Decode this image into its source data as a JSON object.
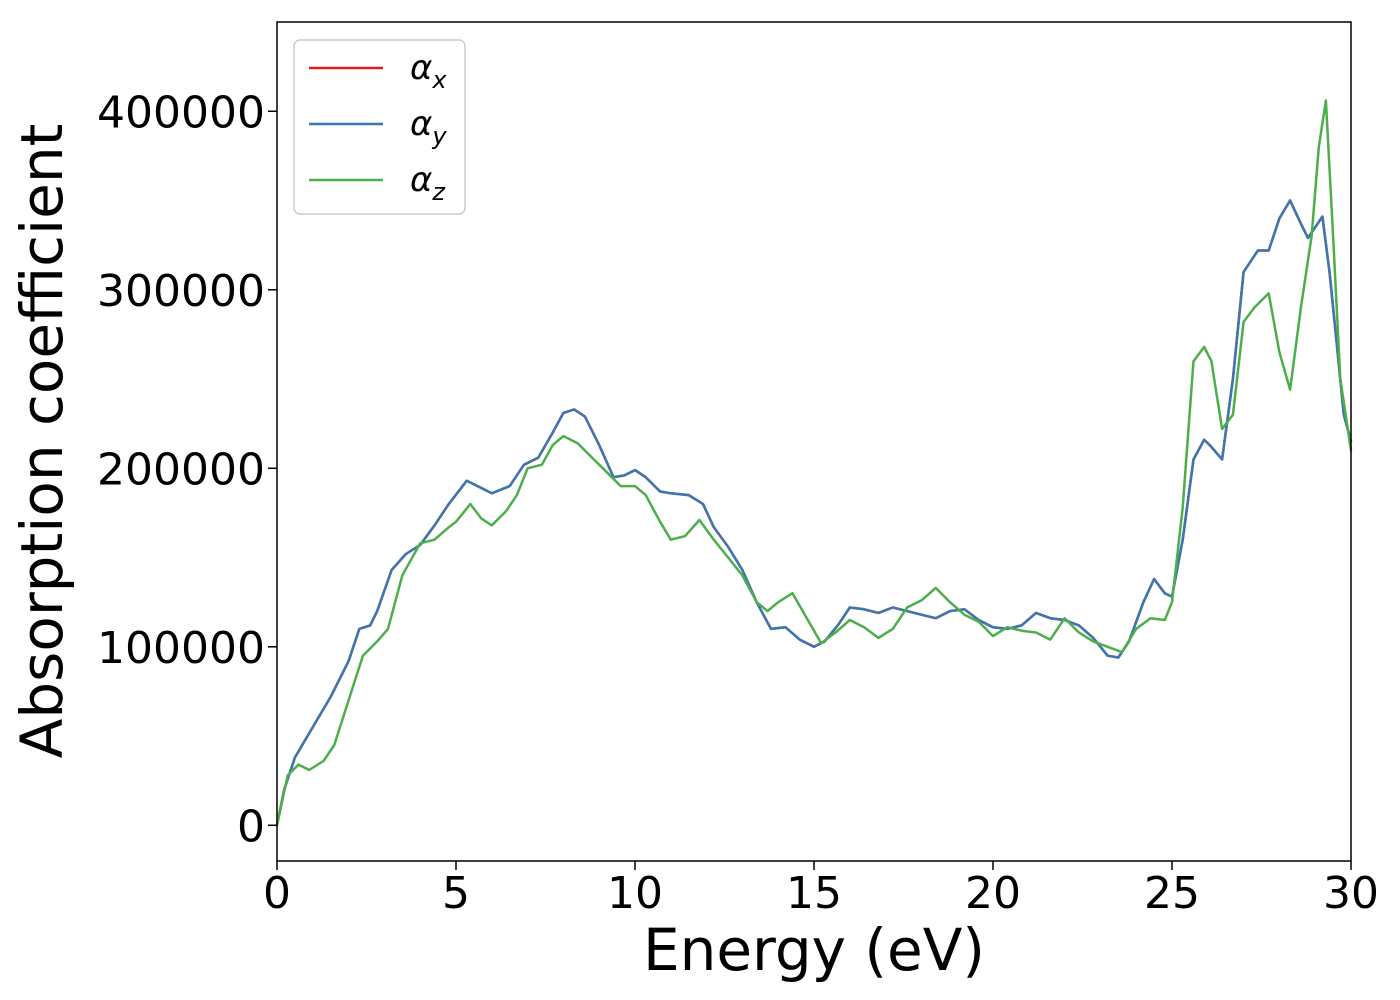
{
  "chart_data": {
    "type": "line",
    "title": "",
    "xlabel": "Energy (eV)",
    "ylabel": "Absorption coefficient",
    "xlim": [
      0,
      30
    ],
    "ylim": [
      -20000,
      450000
    ],
    "xticks": [
      0,
      5,
      10,
      15,
      20,
      25,
      30
    ],
    "yticks": [
      0,
      100000,
      200000,
      300000,
      400000
    ],
    "grid": false,
    "legend_position": "top-left",
    "series": [
      {
        "name": "α_x",
        "label_base": "α",
        "label_sub": "x",
        "color": "#e41a1c",
        "x": [
          0,
          0.2,
          0.5,
          1.0,
          1.5,
          2.0,
          2.3,
          2.6,
          2.8,
          3.2,
          3.6,
          4.0,
          4.4,
          4.8,
          5.3,
          5.7,
          6.0,
          6.5,
          6.9,
          7.3,
          7.7,
          8.0,
          8.3,
          8.6,
          9.0,
          9.4,
          9.7,
          10.0,
          10.3,
          10.7,
          11.0,
          11.5,
          11.9,
          12.2,
          12.6,
          13.0,
          13.4,
          13.8,
          14.2,
          14.6,
          15.0,
          15.3,
          15.7,
          16.0,
          16.4,
          16.8,
          17.2,
          17.6,
          18.0,
          18.4,
          18.8,
          19.2,
          19.6,
          20.0,
          20.4,
          20.8,
          21.2,
          21.6,
          22.0,
          22.4,
          22.8,
          23.2,
          23.5,
          23.8,
          24.2,
          24.5,
          24.8,
          25.0,
          25.3,
          25.6,
          25.9,
          26.1,
          26.4,
          26.7,
          27.0,
          27.4,
          27.7,
          28.0,
          28.3,
          28.6,
          28.8,
          29.0,
          29.2,
          29.4,
          29.6,
          29.8,
          30.0
        ],
        "y": [
          0,
          20000,
          38000,
          55000,
          72000,
          92000,
          110000,
          112000,
          120000,
          143000,
          152000,
          157000,
          168000,
          180000,
          193000,
          189000,
          186000,
          190000,
          202000,
          206000,
          220000,
          231000,
          233000,
          229000,
          213000,
          195000,
          196000,
          199000,
          195000,
          187000,
          186000,
          185000,
          180000,
          167000,
          156000,
          143000,
          125000,
          110000,
          111000,
          104000,
          100000,
          103000,
          113000,
          122000,
          121000,
          119000,
          122000,
          120000,
          118000,
          116000,
          120000,
          121000,
          115000,
          111000,
          110000,
          112000,
          119000,
          116000,
          115000,
          112000,
          105000,
          95000,
          94000,
          103000,
          125000,
          138000,
          130000,
          128000,
          160000,
          205000,
          216000,
          212000,
          205000,
          250000,
          310000,
          322000,
          322000,
          340000,
          350000,
          337000,
          329000,
          335000,
          341000,
          310000,
          270000,
          230000,
          215000
        ]
      },
      {
        "name": "α_y",
        "label_base": "α",
        "label_sub": "y",
        "color": "#3a78b2",
        "x": [
          0,
          0.2,
          0.5,
          1.0,
          1.5,
          2.0,
          2.3,
          2.6,
          2.8,
          3.2,
          3.6,
          4.0,
          4.4,
          4.8,
          5.3,
          5.7,
          6.0,
          6.5,
          6.9,
          7.3,
          7.7,
          8.0,
          8.3,
          8.6,
          9.0,
          9.4,
          9.7,
          10.0,
          10.3,
          10.7,
          11.0,
          11.5,
          11.9,
          12.2,
          12.6,
          13.0,
          13.4,
          13.8,
          14.2,
          14.6,
          15.0,
          15.3,
          15.7,
          16.0,
          16.4,
          16.8,
          17.2,
          17.6,
          18.0,
          18.4,
          18.8,
          19.2,
          19.6,
          20.0,
          20.4,
          20.8,
          21.2,
          21.6,
          22.0,
          22.4,
          22.8,
          23.2,
          23.5,
          23.8,
          24.2,
          24.5,
          24.8,
          25.0,
          25.3,
          25.6,
          25.9,
          26.1,
          26.4,
          26.7,
          27.0,
          27.4,
          27.7,
          28.0,
          28.3,
          28.6,
          28.8,
          29.0,
          29.2,
          29.4,
          29.6,
          29.8,
          30.0
        ],
        "y": [
          0,
          20000,
          38000,
          55000,
          72000,
          92000,
          110000,
          112000,
          120000,
          143000,
          152000,
          157000,
          168000,
          180000,
          193000,
          189000,
          186000,
          190000,
          202000,
          206000,
          220000,
          231000,
          233000,
          229000,
          213000,
          195000,
          196000,
          199000,
          195000,
          187000,
          186000,
          185000,
          180000,
          167000,
          156000,
          143000,
          125000,
          110000,
          111000,
          104000,
          100000,
          103000,
          113000,
          122000,
          121000,
          119000,
          122000,
          120000,
          118000,
          116000,
          120000,
          121000,
          115000,
          111000,
          110000,
          112000,
          119000,
          116000,
          115000,
          112000,
          105000,
          95000,
          94000,
          103000,
          125000,
          138000,
          130000,
          128000,
          160000,
          205000,
          216000,
          212000,
          205000,
          250000,
          310000,
          322000,
          322000,
          340000,
          350000,
          337000,
          329000,
          335000,
          341000,
          310000,
          270000,
          230000,
          215000
        ]
      },
      {
        "name": "α_z",
        "label_base": "α",
        "label_sub": "z",
        "color": "#4daf4a",
        "x": [
          0,
          0.3,
          0.6,
          0.9,
          1.3,
          1.6,
          2.0,
          2.4,
          2.8,
          3.1,
          3.5,
          4.0,
          4.4,
          4.8,
          5.0,
          5.4,
          5.7,
          6.0,
          6.4,
          6.7,
          7.0,
          7.4,
          7.7,
          8.0,
          8.4,
          8.8,
          9.2,
          9.6,
          10.0,
          10.3,
          10.7,
          11.0,
          11.4,
          11.8,
          12.2,
          12.6,
          13.0,
          13.4,
          13.7,
          14.0,
          14.4,
          14.8,
          15.2,
          15.6,
          16.0,
          16.4,
          16.8,
          17.2,
          17.6,
          18.0,
          18.4,
          18.8,
          19.2,
          19.6,
          20.0,
          20.4,
          20.8,
          21.2,
          21.6,
          22.0,
          22.4,
          22.8,
          23.2,
          23.6,
          24.0,
          24.4,
          24.8,
          25.0,
          25.3,
          25.6,
          25.9,
          26.1,
          26.4,
          26.7,
          27.0,
          27.3,
          27.7,
          28.0,
          28.3,
          28.6,
          28.9,
          29.1,
          29.3,
          29.5,
          29.7,
          30.0
        ],
        "y": [
          0,
          28000,
          34000,
          31000,
          36000,
          45000,
          70000,
          95000,
          103000,
          110000,
          140000,
          158000,
          160000,
          167000,
          170000,
          180000,
          172000,
          168000,
          176000,
          185000,
          200000,
          202000,
          213000,
          218000,
          214000,
          206000,
          198000,
          190000,
          190000,
          185000,
          170000,
          160000,
          162000,
          171000,
          160000,
          150000,
          140000,
          125000,
          120000,
          125000,
          130000,
          116000,
          102000,
          108000,
          115000,
          111000,
          105000,
          110000,
          122000,
          126000,
          133000,
          125000,
          118000,
          114000,
          106000,
          111000,
          109000,
          108000,
          104000,
          116000,
          108000,
          103000,
          100000,
          97000,
          110000,
          116000,
          115000,
          125000,
          178000,
          260000,
          268000,
          260000,
          222000,
          230000,
          282000,
          290000,
          298000,
          265000,
          244000,
          290000,
          330000,
          380000,
          406000,
          330000,
          250000,
          210000
        ]
      }
    ]
  }
}
